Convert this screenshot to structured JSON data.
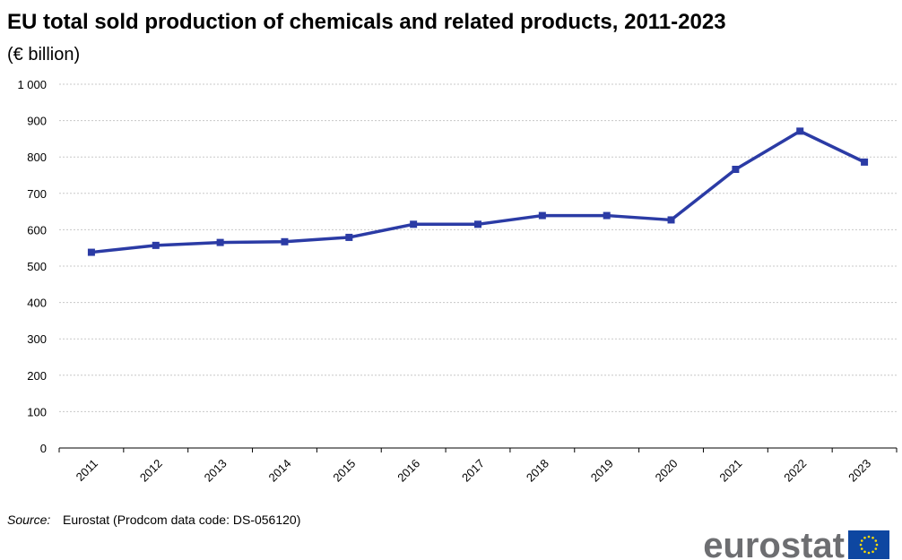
{
  "chart_data": {
    "type": "line",
    "title": "EU total sold production of chemicals and related products, 2011-2023",
    "subtitle": "(€ billion)",
    "categories": [
      "2011",
      "2012",
      "2013",
      "2014",
      "2015",
      "2016",
      "2017",
      "2018",
      "2019",
      "2020",
      "2021",
      "2022",
      "2023"
    ],
    "series": [
      {
        "name": "EU total sold production",
        "color": "#2b3ba5",
        "values": [
          538,
          557,
          565,
          567,
          579,
          615,
          615,
          639,
          639,
          627,
          766,
          871,
          786
        ]
      }
    ],
    "ylim": [
      0,
      1000
    ],
    "yticks": [
      0,
      100,
      200,
      300,
      400,
      500,
      600,
      700,
      800,
      900,
      {
        "value": 1000,
        "label": "1 000"
      }
    ],
    "grid": true,
    "source_label": "Source:",
    "source": "Eurostat (Prodcom data code: DS-056120)",
    "logo": "eurostat"
  }
}
